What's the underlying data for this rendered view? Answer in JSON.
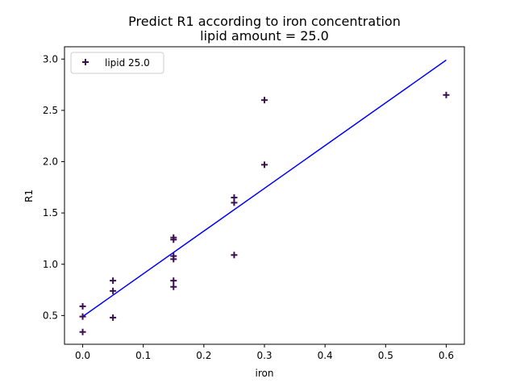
{
  "chart_data": {
    "type": "scatter",
    "title": "Predict R1 according to iron concentration",
    "subtitle": "lipid amount = 25.0",
    "xlabel": "iron",
    "ylabel": "R1",
    "xlim": [
      -0.03,
      0.63
    ],
    "ylim": [
      0.22,
      3.12
    ],
    "xticks": [
      0.0,
      0.1,
      0.2,
      0.3,
      0.4,
      0.5,
      0.6
    ],
    "xtick_labels": [
      "0.0",
      "0.1",
      "0.2",
      "0.3",
      "0.4",
      "0.5",
      "0.6"
    ],
    "yticks": [
      0.5,
      1.0,
      1.5,
      2.0,
      2.5,
      3.0
    ],
    "ytick_labels": [
      "0.5",
      "1.0",
      "1.5",
      "2.0",
      "2.5",
      "3.0"
    ],
    "grid": false,
    "legend_position": "top-left",
    "series": [
      {
        "name": "lipid 25.0",
        "marker": "plus",
        "color": "#3b0f4f",
        "points": [
          {
            "x": 0.0,
            "y": 0.59
          },
          {
            "x": 0.0,
            "y": 0.49
          },
          {
            "x": 0.0,
            "y": 0.34
          },
          {
            "x": 0.05,
            "y": 0.84
          },
          {
            "x": 0.05,
            "y": 0.74
          },
          {
            "x": 0.05,
            "y": 0.48
          },
          {
            "x": 0.15,
            "y": 1.26
          },
          {
            "x": 0.15,
            "y": 1.24
          },
          {
            "x": 0.15,
            "y": 1.08
          },
          {
            "x": 0.15,
            "y": 1.05
          },
          {
            "x": 0.15,
            "y": 0.84
          },
          {
            "x": 0.15,
            "y": 0.78
          },
          {
            "x": 0.25,
            "y": 1.65
          },
          {
            "x": 0.25,
            "y": 1.6
          },
          {
            "x": 0.25,
            "y": 1.09
          },
          {
            "x": 0.3,
            "y": 2.6
          },
          {
            "x": 0.3,
            "y": 1.97
          },
          {
            "x": 0.6,
            "y": 2.65
          }
        ]
      }
    ],
    "fit_line": {
      "type": "line",
      "color": "#0000ff",
      "points": [
        {
          "x": 0.0,
          "y": 0.49
        },
        {
          "x": 0.6,
          "y": 2.99
        }
      ]
    }
  }
}
